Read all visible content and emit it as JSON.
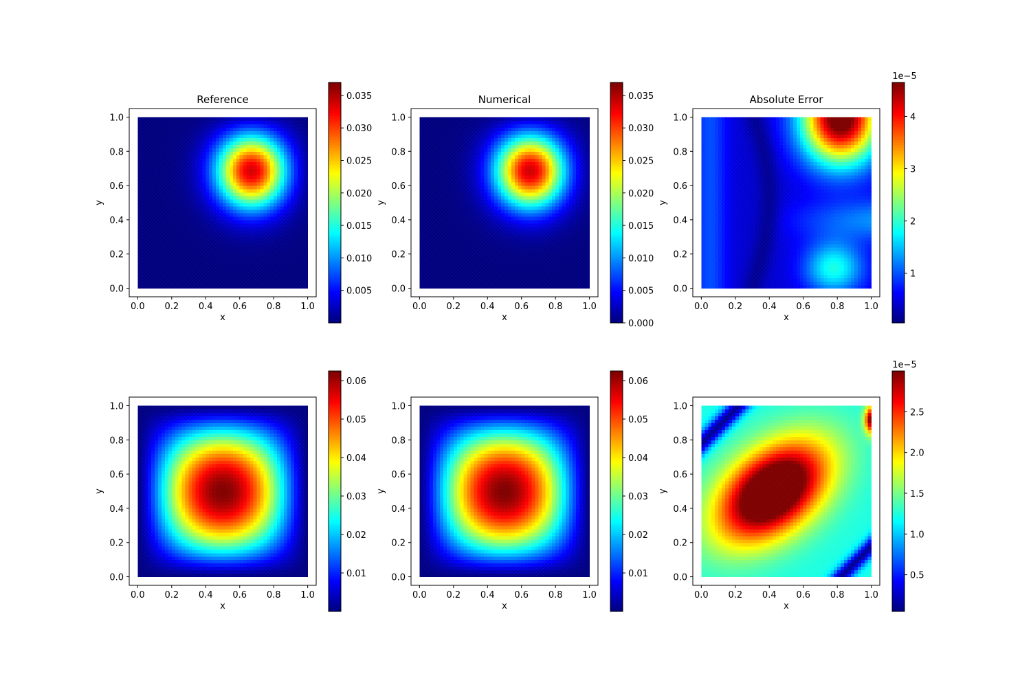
{
  "figure": {
    "colormap": "jet",
    "colormap_stops": [
      "#00007f",
      "#0000ff",
      "#007fff",
      "#00ffff",
      "#7fff7f",
      "#ffff00",
      "#ff7f00",
      "#ff0000",
      "#7f0000"
    ]
  },
  "chart_data": [
    {
      "type": "heatmap",
      "title": "Reference",
      "xlabel": "x",
      "ylabel": "y",
      "xlim": [
        -0.05,
        1.05
      ],
      "ylim": [
        -0.05,
        1.05
      ],
      "xticks": [
        "0.0",
        "0.2",
        "0.4",
        "0.6",
        "0.8",
        "1.0"
      ],
      "yticks": [
        "0.0",
        "0.2",
        "0.4",
        "0.6",
        "0.8",
        "1.0"
      ],
      "field": {
        "kind": "peak",
        "cx": 0.68,
        "cy": 0.7
      },
      "colorbar": {
        "min": 0.0,
        "max": 0.037,
        "ticks": [
          0.005,
          0.01,
          0.015,
          0.02,
          0.025,
          0.03,
          0.035
        ],
        "tick_labels": [
          "0.005",
          "0.010",
          "0.015",
          "0.020",
          "0.025",
          "0.030",
          "0.035"
        ],
        "offset": ""
      }
    },
    {
      "type": "heatmap",
      "title": "Numerical",
      "xlabel": "x",
      "ylabel": "y",
      "xlim": [
        -0.05,
        1.05
      ],
      "ylim": [
        -0.05,
        1.05
      ],
      "xticks": [
        "0.0",
        "0.2",
        "0.4",
        "0.6",
        "0.8",
        "1.0"
      ],
      "yticks": [
        "0.0",
        "0.2",
        "0.4",
        "0.6",
        "0.8",
        "1.0"
      ],
      "field": {
        "kind": "peak",
        "cx": 0.66,
        "cy": 0.7
      },
      "colorbar": {
        "min": 0.0,
        "max": 0.037,
        "ticks": [
          0.0,
          0.005,
          0.01,
          0.015,
          0.02,
          0.025,
          0.03,
          0.035
        ],
        "tick_labels": [
          "0.000",
          "0.005",
          "0.010",
          "0.015",
          "0.020",
          "0.025",
          "0.030",
          "0.035"
        ],
        "offset": ""
      }
    },
    {
      "type": "heatmap",
      "title": "Absolute Error",
      "xlabel": "x",
      "ylabel": "y",
      "xlim": [
        -0.05,
        1.05
      ],
      "ylim": [
        -0.05,
        1.05
      ],
      "xticks": [
        "0.0",
        "0.2",
        "0.4",
        "0.6",
        "0.8",
        "1.0"
      ],
      "yticks": [
        "0.0",
        "0.2",
        "0.4",
        "0.6",
        "0.8",
        "1.0"
      ],
      "field": {
        "kind": "error1"
      },
      "colorbar": {
        "min": 0.05,
        "max": 4.65,
        "ticks": [
          1,
          2,
          3,
          4
        ],
        "tick_labels": [
          "1",
          "2",
          "3",
          "4"
        ],
        "offset": "1e−5"
      }
    },
    {
      "type": "heatmap",
      "title": "",
      "xlabel": "x",
      "ylabel": "y",
      "xlim": [
        -0.05,
        1.05
      ],
      "ylim": [
        -0.05,
        1.05
      ],
      "xticks": [
        "0.0",
        "0.2",
        "0.4",
        "0.6",
        "0.8",
        "1.0"
      ],
      "yticks": [
        "0.0",
        "0.2",
        "0.4",
        "0.6",
        "0.8",
        "1.0"
      ],
      "field": {
        "kind": "bump",
        "cx": 0.5,
        "cy": 0.5
      },
      "colorbar": {
        "min": 0.0,
        "max": 0.0625,
        "ticks": [
          0.01,
          0.02,
          0.03,
          0.04,
          0.05,
          0.06
        ],
        "tick_labels": [
          "0.01",
          "0.02",
          "0.03",
          "0.04",
          "0.05",
          "0.06"
        ],
        "offset": ""
      }
    },
    {
      "type": "heatmap",
      "title": "",
      "xlabel": "x",
      "ylabel": "y",
      "xlim": [
        -0.05,
        1.05
      ],
      "ylim": [
        -0.05,
        1.05
      ],
      "xticks": [
        "0.0",
        "0.2",
        "0.4",
        "0.6",
        "0.8",
        "1.0"
      ],
      "yticks": [
        "0.0",
        "0.2",
        "0.4",
        "0.6",
        "0.8",
        "1.0"
      ],
      "field": {
        "kind": "bump",
        "cx": 0.5,
        "cy": 0.5
      },
      "colorbar": {
        "min": 0.0,
        "max": 0.0625,
        "ticks": [
          0.01,
          0.02,
          0.03,
          0.04,
          0.05,
          0.06
        ],
        "tick_labels": [
          "0.01",
          "0.02",
          "0.03",
          "0.04",
          "0.05",
          "0.06"
        ],
        "offset": ""
      }
    },
    {
      "type": "heatmap",
      "title": "",
      "xlabel": "x",
      "ylabel": "y",
      "xlim": [
        -0.05,
        1.05
      ],
      "ylim": [
        -0.05,
        1.05
      ],
      "xticks": [
        "0.0",
        "0.2",
        "0.4",
        "0.6",
        "0.8",
        "1.0"
      ],
      "yticks": [
        "0.0",
        "0.2",
        "0.4",
        "0.6",
        "0.8",
        "1.0"
      ],
      "field": {
        "kind": "error2"
      },
      "colorbar": {
        "min": 0.05,
        "max": 3.0,
        "ticks": [
          0.5,
          1.0,
          1.5,
          2.0,
          2.5
        ],
        "tick_labels": [
          "0.5",
          "1.0",
          "1.5",
          "2.0",
          "2.5"
        ],
        "offset": "1e−5"
      }
    }
  ]
}
